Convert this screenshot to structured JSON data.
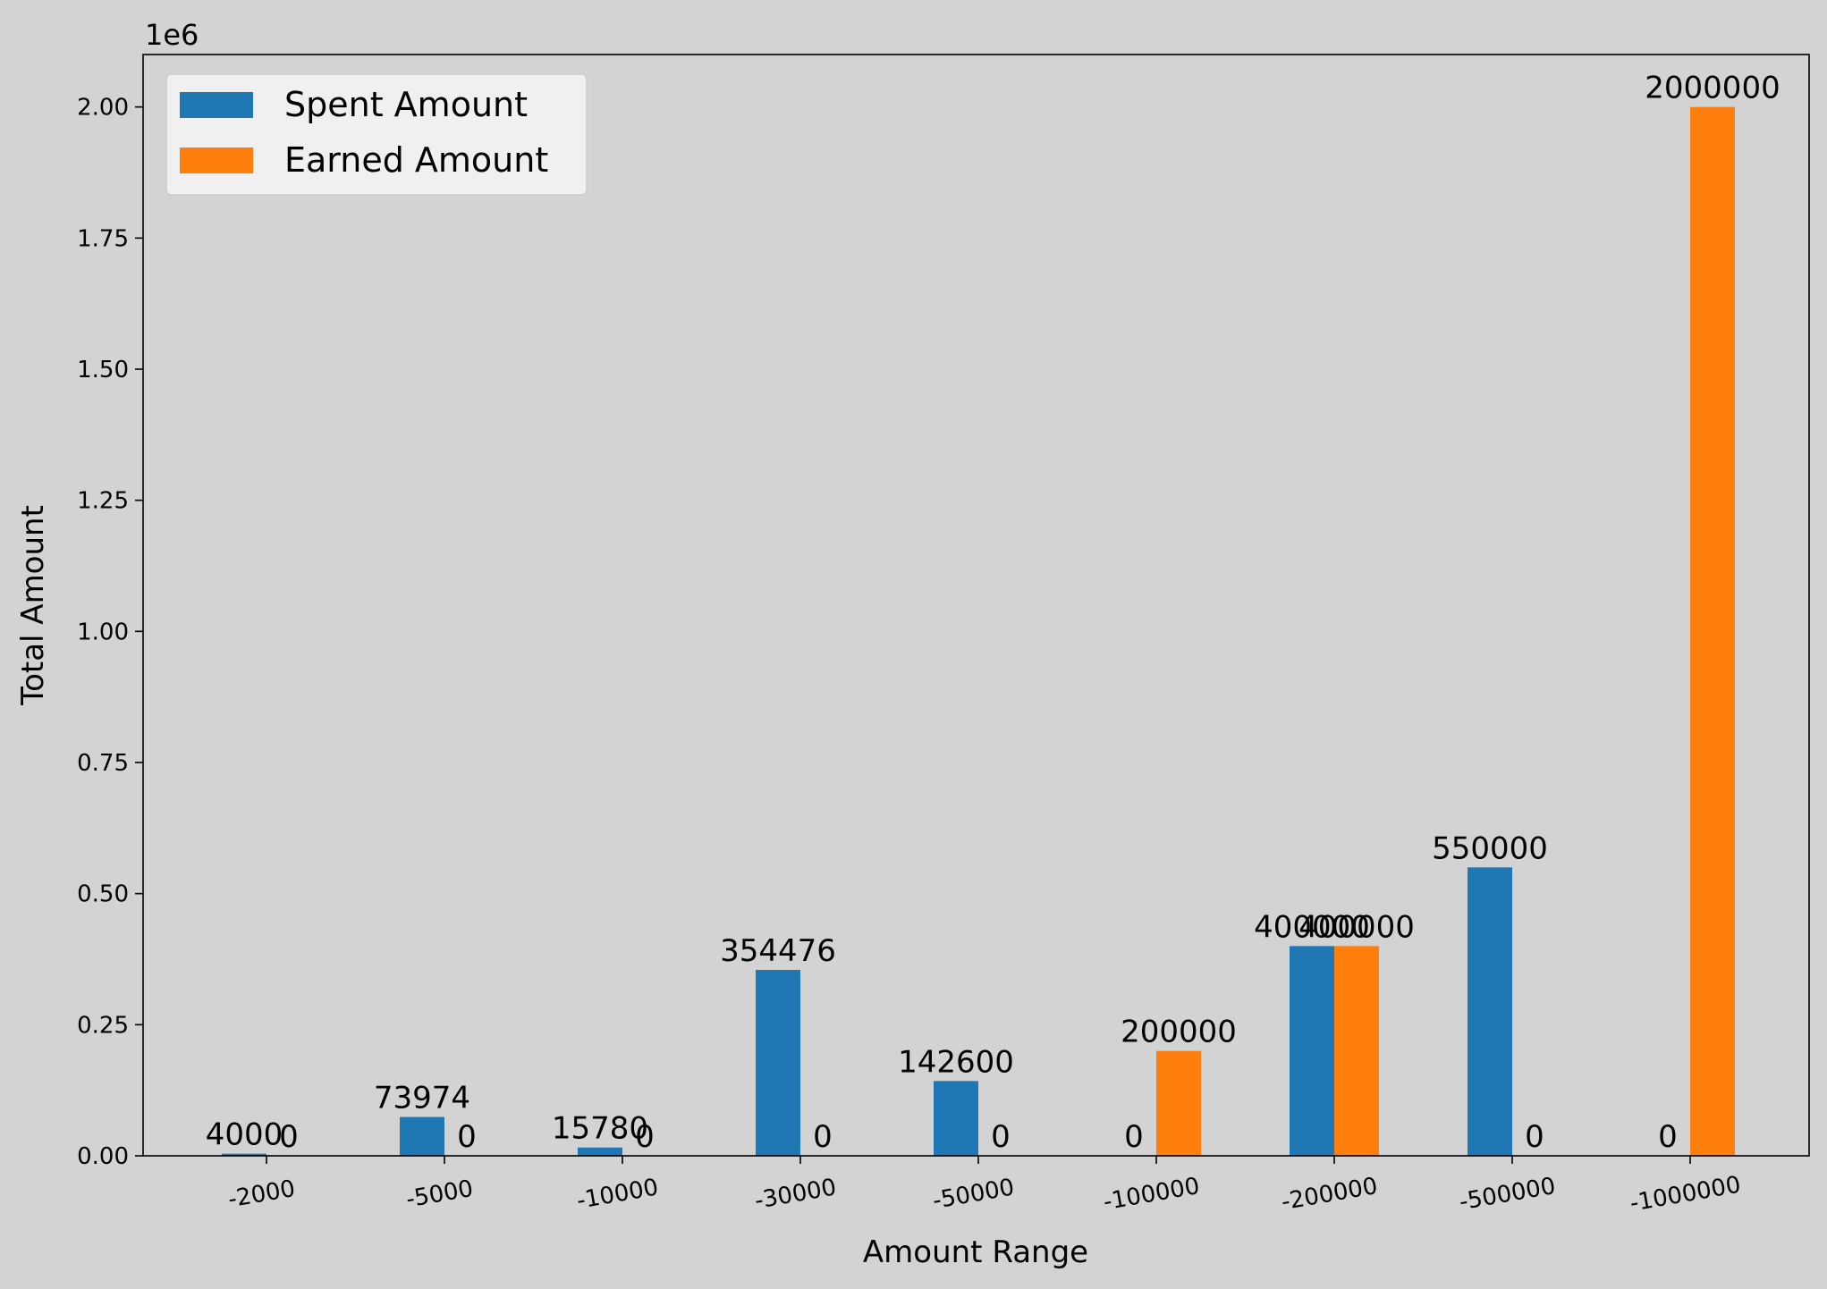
{
  "chart_data": {
    "type": "bar",
    "xlabel": "Amount Range",
    "ylabel": "Total Amount",
    "y_offset_text": "1e6",
    "ylim": [
      0,
      2100000
    ],
    "yticks": [
      0,
      250000,
      500000,
      750000,
      1000000,
      1250000,
      1500000,
      1750000,
      2000000
    ],
    "ytick_labels": [
      "0.00",
      "0.25",
      "0.50",
      "0.75",
      "1.00",
      "1.25",
      "1.50",
      "1.75",
      "2.00"
    ],
    "categories": [
      "-2000",
      "-5000",
      "-10000",
      "-30000",
      "-50000",
      "-100000",
      "-200000",
      "-500000",
      "-1000000"
    ],
    "series": [
      {
        "name": "Spent Amount",
        "color": "#1f77b4",
        "values": [
          4000,
          73974,
          15780,
          354476,
          142600,
          0,
          400000,
          550000,
          0
        ]
      },
      {
        "name": "Earned Amount",
        "color": "#ff7f0e",
        "values": [
          0,
          0,
          0,
          0,
          0,
          200000,
          400000,
          0,
          2000000
        ]
      }
    ],
    "legend_position": "top-left",
    "grid": false
  }
}
